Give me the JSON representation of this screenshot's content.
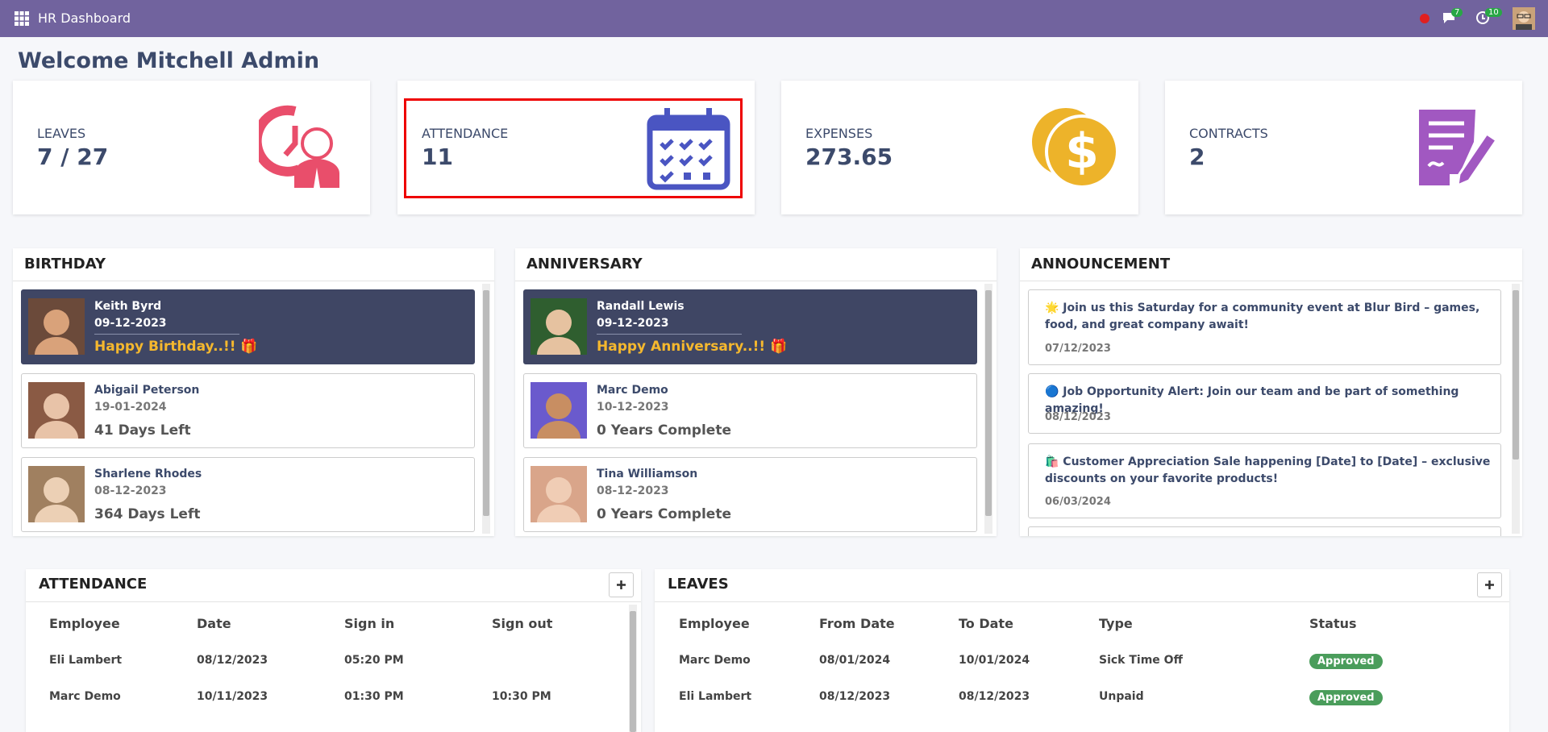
{
  "header": {
    "title": "HR Dashboard",
    "chat_badge": 7,
    "activity_badge": 10
  },
  "welcome": "Welcome Mitchell Admin",
  "cards": [
    {
      "label": "LEAVES",
      "value": "7 / 27"
    },
    {
      "label": "ATTENDANCE",
      "value": "11"
    },
    {
      "label": "EXPENSES",
      "value": "273.65"
    },
    {
      "label": "CONTRACTS",
      "value": "2"
    }
  ],
  "birthday": {
    "title": "BIRTHDAY",
    "items": [
      {
        "name": "Keith Byrd",
        "date": "09-12-2023",
        "note": "Happy Birthday..!! 🎁"
      },
      {
        "name": "Abigail Peterson",
        "date": "19-01-2024",
        "note": "41 Days Left"
      },
      {
        "name": "Sharlene Rhodes",
        "date": "08-12-2023",
        "note": "364 Days Left"
      }
    ]
  },
  "anniversary": {
    "title": "ANNIVERSARY",
    "items": [
      {
        "name": "Randall Lewis",
        "date": "09-12-2023",
        "note": "Happy Anniversary..!! 🎁"
      },
      {
        "name": "Marc Demo",
        "date": "10-12-2023",
        "note": "0 Years Complete"
      },
      {
        "name": "Tina Williamson",
        "date": "08-12-2023",
        "note": "0 Years Complete"
      }
    ]
  },
  "announcement": {
    "title": "ANNOUNCEMENT",
    "items": [
      {
        "text": "🌟 Join us this Saturday for a community event at Blur Bird – games, food, and great company await!",
        "date": "07/12/2023"
      },
      {
        "text": "🔵 Job Opportunity Alert: Join our team and be part of something amazing!",
        "date": "08/12/2023"
      },
      {
        "text": "🛍️ Customer Appreciation Sale happening [Date] to [Date] – exclusive discounts on your favorite products!",
        "date": "06/03/2024"
      }
    ]
  },
  "attendance": {
    "title": "ATTENDANCE",
    "columns": [
      "Employee",
      "Date",
      "Sign in",
      "Sign out"
    ],
    "rows": [
      [
        "Eli Lambert",
        "08/12/2023",
        "05:20 PM",
        ""
      ],
      [
        "Marc Demo",
        "10/11/2023",
        "01:30 PM",
        "10:30 PM"
      ]
    ]
  },
  "leaves": {
    "title": "LEAVES",
    "columns": [
      "Employee",
      "From Date",
      "To Date",
      "Type",
      "Status"
    ],
    "rows": [
      [
        "Marc Demo",
        "08/01/2024",
        "10/01/2024",
        "Sick Time Off",
        "Approved"
      ],
      [
        "Eli Lambert",
        "08/12/2023",
        "08/12/2023",
        "Unpaid",
        "Approved"
      ]
    ]
  }
}
